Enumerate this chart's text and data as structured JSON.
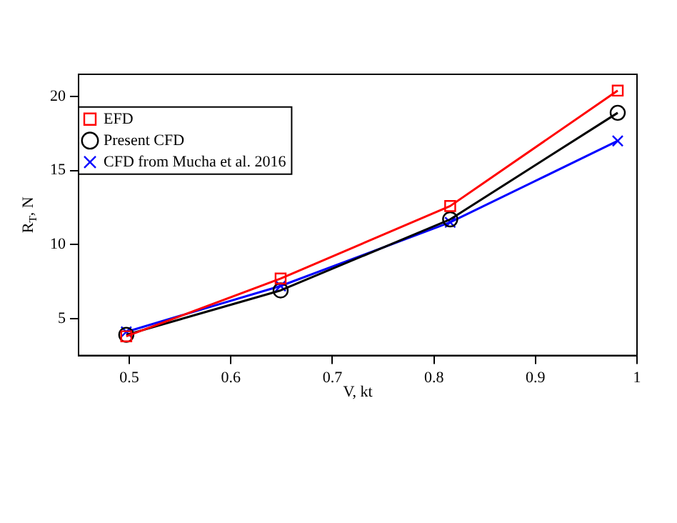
{
  "chart_data": {
    "type": "line",
    "xlabel": "V, kt",
    "ylabel": "R$_{T}$, N",
    "xlim": [
      0.45,
      1.0
    ],
    "xticks": [
      0.5,
      0.6,
      0.7,
      0.8,
      0.9,
      {
        "value": 1.0,
        "label": "1"
      }
    ],
    "ylim": [
      2.5,
      21.5
    ],
    "yticks": [
      5,
      10,
      15,
      20
    ],
    "grid": false,
    "legend": "top",
    "series": [
      {
        "name": "EFD",
        "color": "#ff0000",
        "marker": "square",
        "x": [
          0.497,
          0.649,
          0.816,
          0.981
        ],
        "values": [
          3.8,
          7.7,
          12.6,
          20.4
        ]
      },
      {
        "name": "Present CFD",
        "color": "#000000",
        "marker": "circle",
        "x": [
          0.497,
          0.649,
          0.816,
          0.981
        ],
        "values": [
          3.9,
          6.9,
          11.7,
          18.9
        ]
      },
      {
        "name": "CFD from Mucha et al. 2016",
        "color": "#0000ff",
        "marker": "cross",
        "x": [
          0.497,
          0.649,
          0.816,
          0.981
        ],
        "values": [
          4.1,
          7.2,
          11.5,
          17.0
        ]
      }
    ]
  }
}
